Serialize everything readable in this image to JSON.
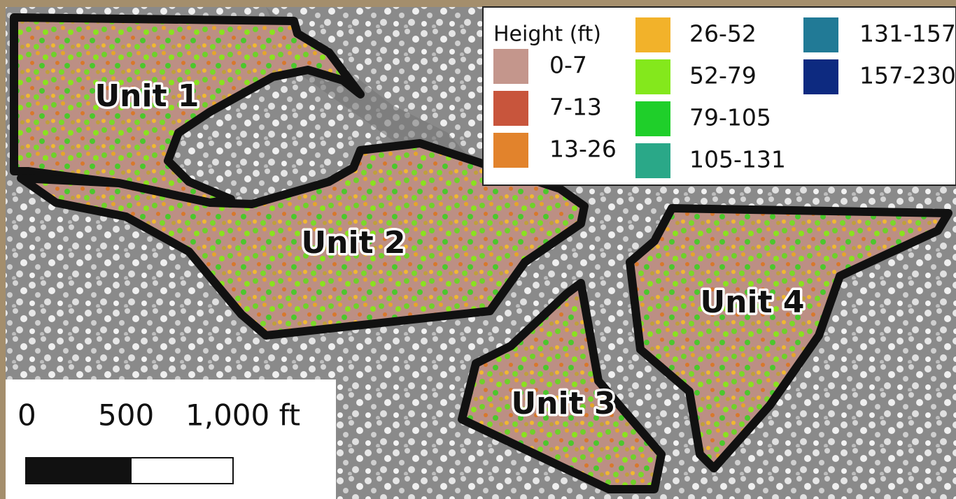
{
  "legend": {
    "title": "Height (ft)",
    "items": [
      {
        "label": "0-7",
        "color": "#c4968c"
      },
      {
        "label": "7-13",
        "color": "#c8553c"
      },
      {
        "label": "13-26",
        "color": "#e2832c"
      },
      {
        "label": "26-52",
        "color": "#f2b22a"
      },
      {
        "label": "52-79",
        "color": "#84e81c"
      },
      {
        "label": "79-105",
        "color": "#1fcf2a"
      },
      {
        "label": "105-131",
        "color": "#2aa888"
      },
      {
        "label": "131-157",
        "color": "#217a96"
      },
      {
        "label": "157-230",
        "color": "#0d2a80"
      }
    ]
  },
  "units": [
    "Unit 1",
    "Unit 2",
    "Unit 3",
    "Unit 4"
  ],
  "scale_bar": {
    "labels": [
      "0",
      "500",
      "1,000 ft"
    ]
  }
}
